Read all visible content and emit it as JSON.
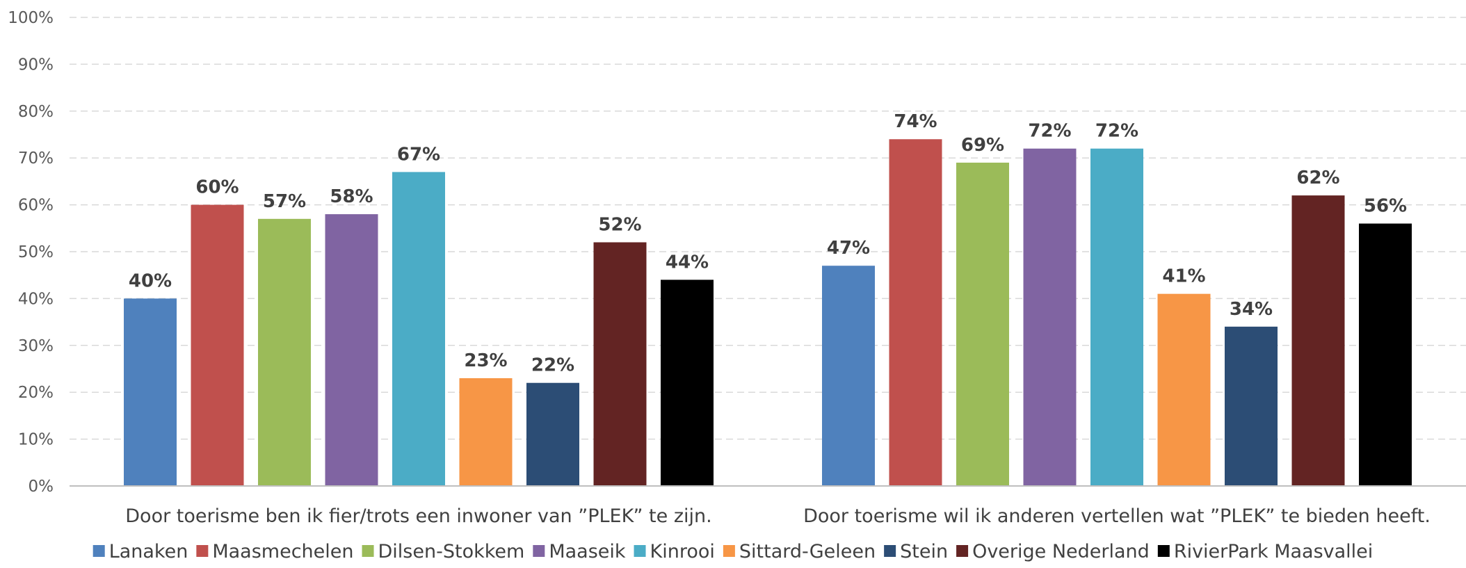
{
  "chart_data": {
    "type": "bar",
    "categories": [
      "Door toerisme ben ik fier/trots een inwoner van ”PLEK” te zijn.",
      "Door toerisme wil ik anderen vertellen wat ”PLEK” te bieden heeft."
    ],
    "series": [
      {
        "name": "Lanaken",
        "color": "#4F81BD",
        "values": [
          40,
          47
        ]
      },
      {
        "name": "Maasmechelen",
        "color": "#C0504D",
        "values": [
          60,
          74
        ]
      },
      {
        "name": "Dilsen-Stokkem",
        "color": "#9BBB59",
        "values": [
          57,
          69
        ]
      },
      {
        "name": "Maaseik",
        "color": "#8064A2",
        "values": [
          58,
          72
        ]
      },
      {
        "name": "Kinrooi",
        "color": "#4BACC6",
        "values": [
          67,
          72
        ]
      },
      {
        "name": "Sittard-Geleen",
        "color": "#F79646",
        "values": [
          23,
          41
        ]
      },
      {
        "name": "Stein",
        "color": "#2C4D75",
        "values": [
          22,
          34
        ]
      },
      {
        "name": "Overige Nederland",
        "color": "#632423",
        "values": [
          52,
          62
        ]
      },
      {
        "name": "RivierPark Maasvallei",
        "color": "#000000",
        "values": [
          44,
          56
        ]
      }
    ],
    "data_labels": [
      [
        "40%",
        "47%"
      ],
      [
        "60%",
        "74%"
      ],
      [
        "57%",
        "69%"
      ],
      [
        "58%",
        "72%"
      ],
      [
        "67%",
        "72%"
      ],
      [
        "23%",
        "41%"
      ],
      [
        "22%",
        "34%"
      ],
      [
        "52%",
        "62%"
      ],
      [
        "44%",
        "56%"
      ]
    ],
    "y_ticks": [
      "0%",
      "10%",
      "20%",
      "30%",
      "40%",
      "50%",
      "60%",
      "70%",
      "80%",
      "90%",
      "100%"
    ],
    "ylim": [
      0,
      100
    ],
    "grid": true,
    "legend_position": "bottom"
  }
}
